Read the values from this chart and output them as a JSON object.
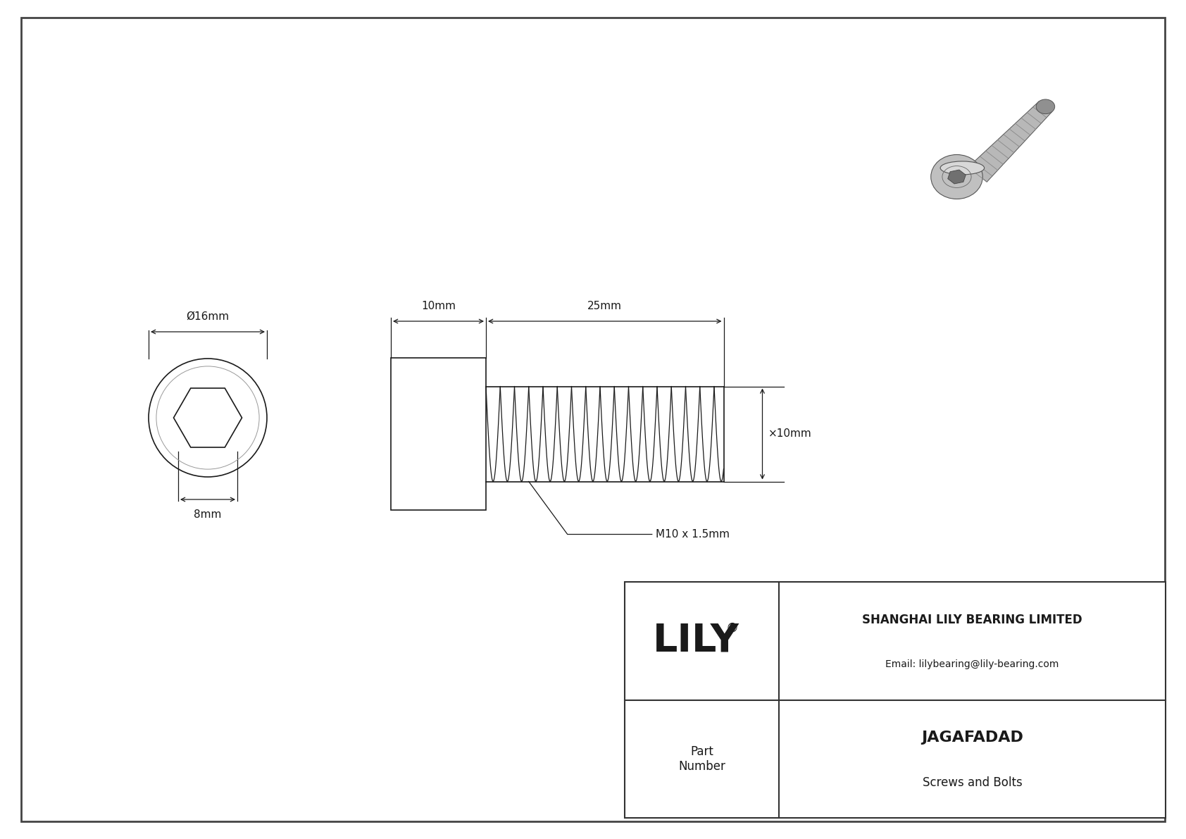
{
  "bg_color": "#ffffff",
  "drawing_bg": "#ffffff",
  "line_color": "#1a1a1a",
  "border_color": "#555555",
  "title": "JAGAFADAD",
  "subtitle": "Screws and Bolts",
  "company": "SHANGHAI LILY BEARING LIMITED",
  "email": "Email: lilybearing@lily-bearing.com",
  "part_label": "Part\nNumber",
  "logo_text": "LILY",
  "logo_reg": "®",
  "head_label": "Ø16mm",
  "hex_label": "8mm",
  "shaft_label_head": "10mm",
  "shaft_label_thread": "25mm",
  "shaft_diam_label": "×10mm",
  "thread_label": "M10 x 1.5mm",
  "lw": 1.2,
  "dlw": 0.9
}
